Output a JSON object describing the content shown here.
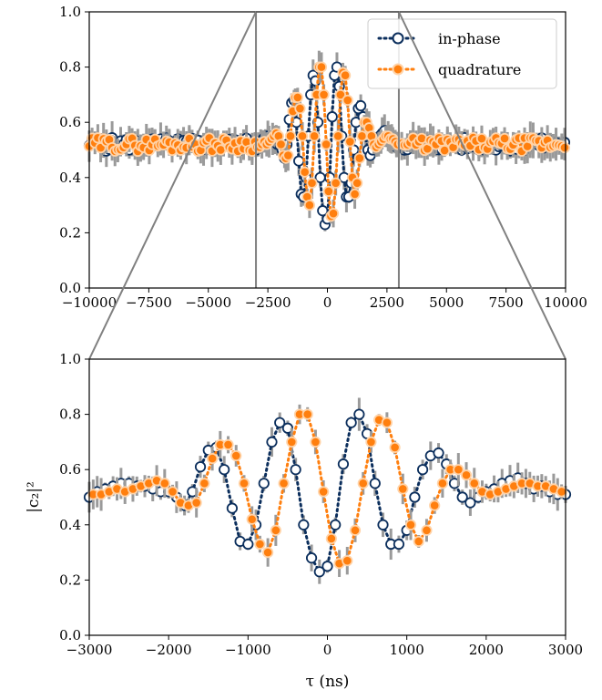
{
  "colors": {
    "in_phase": "#0b2e5c",
    "quadrature": "#ff7f0e",
    "errorbar": "#9a9a9a",
    "zoom_lines": "#808080"
  },
  "legend": {
    "in_phase_label": "in-phase",
    "quadrature_label": "quadrature"
  },
  "chart_data": [
    {
      "type": "scatter",
      "panel": "top",
      "xlabel": "",
      "ylabel": "",
      "xlim": [
        -10000,
        10000
      ],
      "ylim": [
        0.0,
        1.0
      ],
      "xticks": [
        -10000,
        -7500,
        -5000,
        -2500,
        0,
        2500,
        5000,
        7500,
        10000
      ],
      "xtick_labels": [
        "−10000",
        "−7500",
        "−5000",
        "−2500",
        "0",
        "2500",
        "5000",
        "7500",
        "10000"
      ],
      "yticks": [
        0.0,
        0.2,
        0.4,
        0.6,
        0.8,
        1.0
      ],
      "ytick_labels": [
        "0.0",
        "0.2",
        "0.4",
        "0.6",
        "0.8",
        "1.0"
      ],
      "vertical_lines": [
        -3000,
        3000
      ],
      "legend_position": "top-right",
      "grid": false,
      "series_model": {
        "baseline": 0.52,
        "amplitude": 0.27,
        "period_ns": 900,
        "envelope_width_ns": 1050,
        "noise": 0.025,
        "errorbar_typical": 0.03
      },
      "series": [
        {
          "name": "in-phase",
          "marker": "open-circle",
          "line": "dotted"
        },
        {
          "name": "quadrature",
          "marker": "filled-circle",
          "line": "dotted"
        }
      ]
    },
    {
      "type": "scatter",
      "panel": "bottom",
      "xlabel": "τ (ns)",
      "ylabel": "|c₂|²",
      "xlim": [
        -3000,
        3000
      ],
      "ylim": [
        0.0,
        1.0
      ],
      "xticks": [
        -3000,
        -2000,
        -1000,
        0,
        1000,
        2000,
        3000
      ],
      "xtick_labels": [
        "−3000",
        "−2000",
        "−1000",
        "0",
        "1000",
        "2000",
        "3000"
      ],
      "yticks": [
        0.0,
        0.2,
        0.4,
        0.6,
        0.8,
        1.0
      ],
      "ytick_labels": [
        "0.0",
        "0.2",
        "0.4",
        "0.6",
        "0.8",
        "1.0"
      ],
      "grid": false,
      "series": [
        {
          "name": "in-phase",
          "marker": "open-circle",
          "line": "dotted",
          "x": [
            -3000,
            -2900,
            -2800,
            -2700,
            -2600,
            -2500,
            -2400,
            -2300,
            -2200,
            -2100,
            -2000,
            -1900,
            -1800,
            -1700,
            -1600,
            -1500,
            -1400,
            -1300,
            -1200,
            -1100,
            -1000,
            -900,
            -800,
            -700,
            -600,
            -500,
            -400,
            -300,
            -200,
            -100,
            0,
            100,
            200,
            300,
            400,
            500,
            600,
            700,
            800,
            900,
            1000,
            1100,
            1200,
            1300,
            1400,
            1500,
            1600,
            1700,
            1800,
            1900,
            2000,
            2100,
            2200,
            2300,
            2400,
            2500,
            2600,
            2700,
            2800,
            2900,
            3000
          ],
          "y": [
            0.5,
            0.52,
            0.53,
            0.54,
            0.55,
            0.55,
            0.54,
            0.54,
            0.53,
            0.52,
            0.52,
            0.5,
            0.47,
            0.52,
            0.61,
            0.67,
            0.68,
            0.6,
            0.46,
            0.34,
            0.33,
            0.4,
            0.55,
            0.7,
            0.77,
            0.75,
            0.6,
            0.4,
            0.28,
            0.23,
            0.25,
            0.4,
            0.62,
            0.77,
            0.8,
            0.73,
            0.55,
            0.4,
            0.33,
            0.33,
            0.38,
            0.5,
            0.6,
            0.65,
            0.66,
            0.62,
            0.55,
            0.5,
            0.48,
            0.5,
            0.52,
            0.53,
            0.55,
            0.56,
            0.57,
            0.55,
            0.53,
            0.54,
            0.52,
            0.51,
            0.51
          ]
        },
        {
          "name": "quadrature",
          "marker": "filled-circle",
          "line": "dotted",
          "x": [
            -2950,
            -2850,
            -2750,
            -2650,
            -2550,
            -2450,
            -2350,
            -2250,
            -2150,
            -2050,
            -1950,
            -1850,
            -1750,
            -1650,
            -1550,
            -1450,
            -1350,
            -1250,
            -1150,
            -1050,
            -950,
            -850,
            -750,
            -650,
            -550,
            -450,
            -350,
            -250,
            -150,
            -50,
            50,
            150,
            250,
            350,
            450,
            550,
            650,
            750,
            850,
            950,
            1050,
            1150,
            1250,
            1350,
            1450,
            1550,
            1650,
            1750,
            1850,
            1950,
            2050,
            2150,
            2250,
            2350,
            2450,
            2550,
            2650,
            2750,
            2850,
            2950
          ],
          "y": [
            0.51,
            0.51,
            0.52,
            0.53,
            0.52,
            0.53,
            0.54,
            0.55,
            0.56,
            0.55,
            0.52,
            0.48,
            0.47,
            0.48,
            0.55,
            0.64,
            0.69,
            0.69,
            0.65,
            0.55,
            0.42,
            0.33,
            0.3,
            0.38,
            0.55,
            0.7,
            0.8,
            0.8,
            0.7,
            0.52,
            0.35,
            0.26,
            0.27,
            0.38,
            0.55,
            0.7,
            0.78,
            0.77,
            0.68,
            0.53,
            0.4,
            0.34,
            0.38,
            0.47,
            0.55,
            0.6,
            0.6,
            0.58,
            0.55,
            0.52,
            0.51,
            0.52,
            0.53,
            0.54,
            0.55,
            0.55,
            0.54,
            0.54,
            0.53,
            0.52
          ]
        }
      ]
    }
  ]
}
